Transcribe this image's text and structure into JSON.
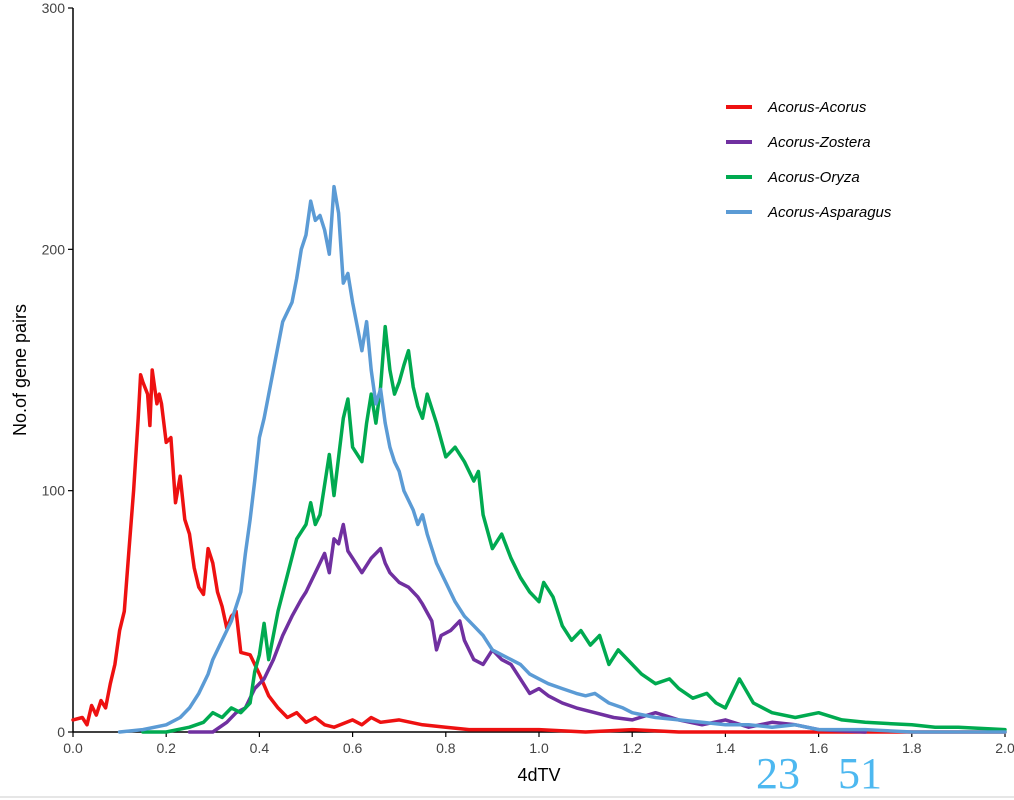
{
  "chart_data": {
    "type": "line",
    "title": "",
    "xlabel": "4dTV",
    "ylabel": "No.of gene pairs",
    "xlim": [
      0,
      2.0
    ],
    "ylim": [
      0,
      300
    ],
    "x_ticks": [
      "0.0",
      "0.2",
      "0.4",
      "0.6",
      "0.8",
      "1.0",
      "1.2",
      "1.4",
      "1.6",
      "1.8",
      "2.0"
    ],
    "y_ticks": [
      "0",
      "100",
      "200",
      "300"
    ],
    "grid": false,
    "legend_position": "top-right",
    "series": [
      {
        "name": "Acorus-Acorus",
        "color": "#ee1111",
        "points": [
          [
            0.0,
            5
          ],
          [
            0.02,
            6
          ],
          [
            0.03,
            3
          ],
          [
            0.04,
            11
          ],
          [
            0.05,
            7
          ],
          [
            0.06,
            13
          ],
          [
            0.07,
            10
          ],
          [
            0.08,
            20
          ],
          [
            0.09,
            28
          ],
          [
            0.1,
            42
          ],
          [
            0.11,
            50
          ],
          [
            0.12,
            75
          ],
          [
            0.13,
            100
          ],
          [
            0.14,
            130
          ],
          [
            0.145,
            148
          ],
          [
            0.15,
            145
          ],
          [
            0.16,
            140
          ],
          [
            0.165,
            127
          ],
          [
            0.17,
            150
          ],
          [
            0.18,
            136
          ],
          [
            0.185,
            140
          ],
          [
            0.19,
            136
          ],
          [
            0.2,
            120
          ],
          [
            0.21,
            122
          ],
          [
            0.22,
            95
          ],
          [
            0.23,
            106
          ],
          [
            0.24,
            88
          ],
          [
            0.25,
            82
          ],
          [
            0.26,
            68
          ],
          [
            0.27,
            60
          ],
          [
            0.28,
            57
          ],
          [
            0.29,
            76
          ],
          [
            0.3,
            70
          ],
          [
            0.31,
            58
          ],
          [
            0.32,
            52
          ],
          [
            0.33,
            43
          ],
          [
            0.34,
            48
          ],
          [
            0.35,
            50
          ],
          [
            0.36,
            33
          ],
          [
            0.38,
            32
          ],
          [
            0.4,
            24
          ],
          [
            0.42,
            15
          ],
          [
            0.44,
            10
          ],
          [
            0.46,
            6
          ],
          [
            0.48,
            8
          ],
          [
            0.5,
            4
          ],
          [
            0.52,
            6
          ],
          [
            0.54,
            3
          ],
          [
            0.56,
            2
          ],
          [
            0.6,
            5
          ],
          [
            0.62,
            3
          ],
          [
            0.64,
            6
          ],
          [
            0.66,
            4
          ],
          [
            0.7,
            5
          ],
          [
            0.75,
            3
          ],
          [
            0.8,
            2
          ],
          [
            0.85,
            1
          ],
          [
            0.9,
            1
          ],
          [
            1.0,
            1
          ],
          [
            1.1,
            0
          ],
          [
            1.2,
            1
          ],
          [
            1.3,
            0
          ],
          [
            1.5,
            0
          ],
          [
            2.0,
            0
          ]
        ]
      },
      {
        "name": "Acorus-Zostera",
        "color": "#7030a0",
        "points": [
          [
            0.25,
            0
          ],
          [
            0.3,
            0
          ],
          [
            0.33,
            4
          ],
          [
            0.35,
            8
          ],
          [
            0.37,
            10
          ],
          [
            0.39,
            18
          ],
          [
            0.41,
            22
          ],
          [
            0.43,
            30
          ],
          [
            0.45,
            40
          ],
          [
            0.47,
            48
          ],
          [
            0.49,
            55
          ],
          [
            0.5,
            58
          ],
          [
            0.52,
            66
          ],
          [
            0.54,
            74
          ],
          [
            0.55,
            66
          ],
          [
            0.56,
            80
          ],
          [
            0.57,
            78
          ],
          [
            0.58,
            86
          ],
          [
            0.59,
            75
          ],
          [
            0.6,
            72
          ],
          [
            0.62,
            66
          ],
          [
            0.64,
            72
          ],
          [
            0.66,
            76
          ],
          [
            0.67,
            70
          ],
          [
            0.68,
            66
          ],
          [
            0.7,
            62
          ],
          [
            0.72,
            60
          ],
          [
            0.74,
            56
          ],
          [
            0.75,
            53
          ],
          [
            0.77,
            46
          ],
          [
            0.78,
            34
          ],
          [
            0.79,
            40
          ],
          [
            0.81,
            42
          ],
          [
            0.83,
            46
          ],
          [
            0.84,
            38
          ],
          [
            0.86,
            30
          ],
          [
            0.88,
            28
          ],
          [
            0.9,
            34
          ],
          [
            0.92,
            30
          ],
          [
            0.94,
            28
          ],
          [
            0.96,
            22
          ],
          [
            0.98,
            16
          ],
          [
            1.0,
            18
          ],
          [
            1.02,
            15
          ],
          [
            1.05,
            12
          ],
          [
            1.08,
            10
          ],
          [
            1.12,
            8
          ],
          [
            1.16,
            6
          ],
          [
            1.2,
            5
          ],
          [
            1.25,
            8
          ],
          [
            1.3,
            5
          ],
          [
            1.35,
            3
          ],
          [
            1.4,
            5
          ],
          [
            1.45,
            2
          ],
          [
            1.5,
            4
          ],
          [
            1.55,
            3
          ],
          [
            1.6,
            1
          ],
          [
            1.7,
            0
          ]
        ]
      },
      {
        "name": "Acorus-Oryza",
        "color": "#00aa50",
        "points": [
          [
            0.15,
            0
          ],
          [
            0.2,
            0
          ],
          [
            0.25,
            2
          ],
          [
            0.28,
            4
          ],
          [
            0.3,
            8
          ],
          [
            0.32,
            6
          ],
          [
            0.34,
            10
          ],
          [
            0.36,
            8
          ],
          [
            0.38,
            12
          ],
          [
            0.39,
            25
          ],
          [
            0.4,
            32
          ],
          [
            0.41,
            45
          ],
          [
            0.42,
            30
          ],
          [
            0.44,
            50
          ],
          [
            0.46,
            65
          ],
          [
            0.48,
            80
          ],
          [
            0.5,
            86
          ],
          [
            0.51,
            95
          ],
          [
            0.52,
            86
          ],
          [
            0.53,
            90
          ],
          [
            0.55,
            115
          ],
          [
            0.56,
            98
          ],
          [
            0.58,
            130
          ],
          [
            0.59,
            138
          ],
          [
            0.6,
            118
          ],
          [
            0.62,
            112
          ],
          [
            0.63,
            128
          ],
          [
            0.64,
            140
          ],
          [
            0.65,
            128
          ],
          [
            0.66,
            143
          ],
          [
            0.67,
            168
          ],
          [
            0.68,
            150
          ],
          [
            0.69,
            140
          ],
          [
            0.7,
            145
          ],
          [
            0.71,
            152
          ],
          [
            0.72,
            158
          ],
          [
            0.73,
            143
          ],
          [
            0.74,
            135
          ],
          [
            0.75,
            130
          ],
          [
            0.76,
            140
          ],
          [
            0.78,
            128
          ],
          [
            0.8,
            114
          ],
          [
            0.82,
            118
          ],
          [
            0.84,
            112
          ],
          [
            0.86,
            104
          ],
          [
            0.87,
            108
          ],
          [
            0.88,
            90
          ],
          [
            0.9,
            76
          ],
          [
            0.92,
            82
          ],
          [
            0.94,
            72
          ],
          [
            0.96,
            64
          ],
          [
            0.98,
            58
          ],
          [
            1.0,
            54
          ],
          [
            1.01,
            62
          ],
          [
            1.03,
            56
          ],
          [
            1.05,
            44
          ],
          [
            1.07,
            38
          ],
          [
            1.09,
            42
          ],
          [
            1.11,
            36
          ],
          [
            1.13,
            40
          ],
          [
            1.15,
            28
          ],
          [
            1.17,
            34
          ],
          [
            1.2,
            28
          ],
          [
            1.22,
            24
          ],
          [
            1.25,
            20
          ],
          [
            1.28,
            22
          ],
          [
            1.3,
            18
          ],
          [
            1.33,
            14
          ],
          [
            1.36,
            16
          ],
          [
            1.38,
            12
          ],
          [
            1.4,
            10
          ],
          [
            1.43,
            22
          ],
          [
            1.46,
            12
          ],
          [
            1.5,
            8
          ],
          [
            1.55,
            6
          ],
          [
            1.6,
            8
          ],
          [
            1.65,
            5
          ],
          [
            1.7,
            4
          ],
          [
            1.8,
            3
          ],
          [
            1.85,
            2
          ],
          [
            1.9,
            2
          ],
          [
            2.0,
            1
          ]
        ]
      },
      {
        "name": "Acorus-Asparagus",
        "color": "#5b9bd5",
        "points": [
          [
            0.1,
            0
          ],
          [
            0.15,
            1
          ],
          [
            0.2,
            3
          ],
          [
            0.23,
            6
          ],
          [
            0.25,
            10
          ],
          [
            0.27,
            16
          ],
          [
            0.29,
            24
          ],
          [
            0.3,
            30
          ],
          [
            0.32,
            38
          ],
          [
            0.34,
            46
          ],
          [
            0.36,
            58
          ],
          [
            0.37,
            74
          ],
          [
            0.38,
            88
          ],
          [
            0.39,
            104
          ],
          [
            0.4,
            122
          ],
          [
            0.41,
            130
          ],
          [
            0.43,
            150
          ],
          [
            0.45,
            170
          ],
          [
            0.47,
            178
          ],
          [
            0.48,
            188
          ],
          [
            0.49,
            200
          ],
          [
            0.5,
            206
          ],
          [
            0.51,
            220
          ],
          [
            0.52,
            212
          ],
          [
            0.53,
            214
          ],
          [
            0.54,
            208
          ],
          [
            0.55,
            198
          ],
          [
            0.56,
            226
          ],
          [
            0.57,
            215
          ],
          [
            0.58,
            186
          ],
          [
            0.59,
            190
          ],
          [
            0.6,
            178
          ],
          [
            0.61,
            168
          ],
          [
            0.62,
            158
          ],
          [
            0.63,
            170
          ],
          [
            0.64,
            150
          ],
          [
            0.65,
            136
          ],
          [
            0.66,
            142
          ],
          [
            0.67,
            128
          ],
          [
            0.68,
            118
          ],
          [
            0.69,
            112
          ],
          [
            0.7,
            108
          ],
          [
            0.71,
            100
          ],
          [
            0.72,
            96
          ],
          [
            0.73,
            92
          ],
          [
            0.74,
            86
          ],
          [
            0.75,
            90
          ],
          [
            0.76,
            82
          ],
          [
            0.78,
            70
          ],
          [
            0.8,
            62
          ],
          [
            0.82,
            54
          ],
          [
            0.84,
            48
          ],
          [
            0.86,
            44
          ],
          [
            0.88,
            40
          ],
          [
            0.9,
            34
          ],
          [
            0.92,
            32
          ],
          [
            0.94,
            30
          ],
          [
            0.96,
            28
          ],
          [
            0.98,
            24
          ],
          [
            1.0,
            22
          ],
          [
            1.02,
            20
          ],
          [
            1.05,
            18
          ],
          [
            1.08,
            16
          ],
          [
            1.1,
            15
          ],
          [
            1.12,
            16
          ],
          [
            1.15,
            12
          ],
          [
            1.18,
            10
          ],
          [
            1.2,
            8
          ],
          [
            1.25,
            6
          ],
          [
            1.3,
            5
          ],
          [
            1.35,
            4
          ],
          [
            1.4,
            3
          ],
          [
            1.45,
            3
          ],
          [
            1.5,
            2
          ],
          [
            1.55,
            3
          ],
          [
            1.6,
            1
          ],
          [
            1.7,
            1
          ],
          [
            1.8,
            0
          ],
          [
            1.9,
            0
          ],
          [
            2.0,
            0
          ]
        ]
      }
    ]
  },
  "overlay_numbers": [
    "23",
    "51"
  ]
}
